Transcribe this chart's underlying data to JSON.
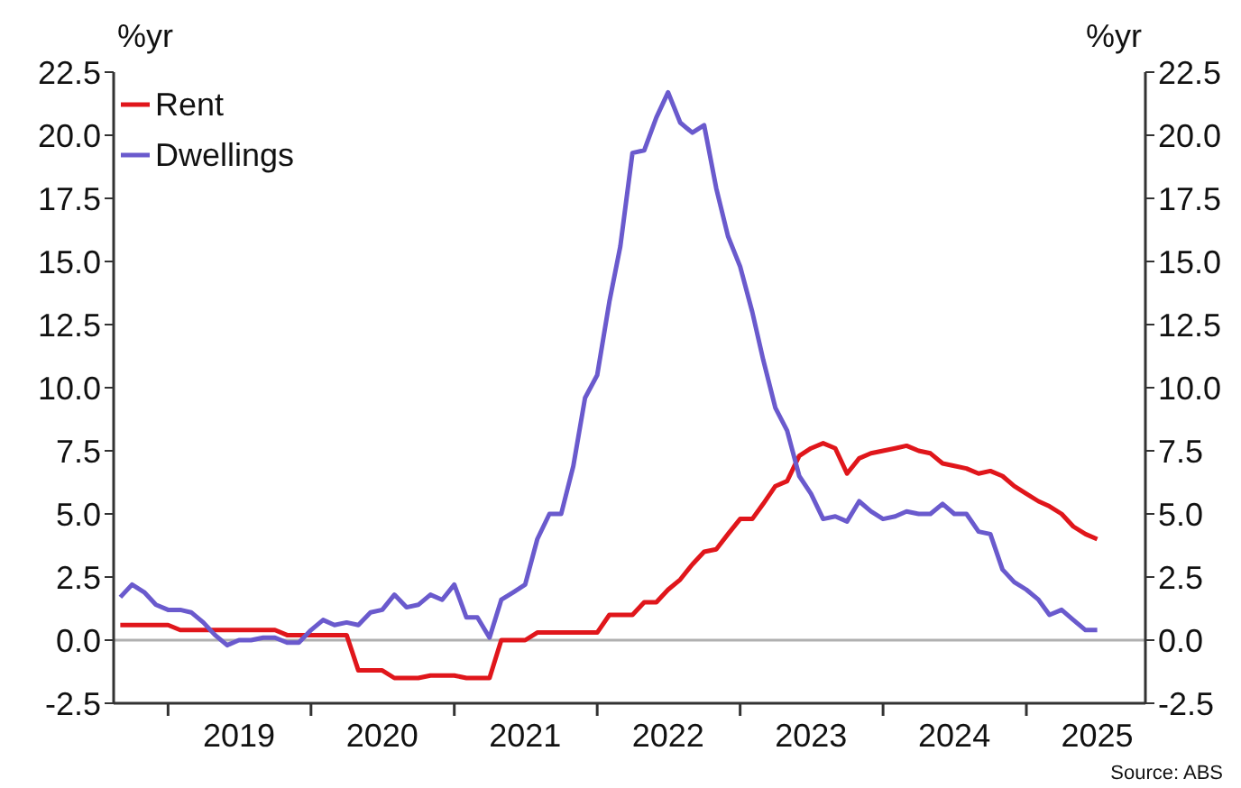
{
  "chart_data": {
    "type": "line",
    "ylabel": "%yr",
    "y2label": "%yr",
    "x": [
      "2018-09",
      "2018-10",
      "2018-11",
      "2018-12",
      "2019-01",
      "2019-02",
      "2019-03",
      "2019-04",
      "2019-05",
      "2019-06",
      "2019-07",
      "2019-08",
      "2019-09",
      "2019-10",
      "2019-11",
      "2019-12",
      "2020-01",
      "2020-02",
      "2020-03",
      "2020-04",
      "2020-05",
      "2020-06",
      "2020-07",
      "2020-08",
      "2020-09",
      "2020-10",
      "2020-11",
      "2020-12",
      "2021-01",
      "2021-02",
      "2021-03",
      "2021-04",
      "2021-05",
      "2021-06",
      "2021-07",
      "2021-08",
      "2021-09",
      "2021-10",
      "2021-11",
      "2021-12",
      "2022-01",
      "2022-02",
      "2022-03",
      "2022-04",
      "2022-05",
      "2022-06",
      "2022-07",
      "2022-08",
      "2022-09",
      "2022-10",
      "2022-11",
      "2022-12",
      "2023-01",
      "2023-02",
      "2023-03",
      "2023-04",
      "2023-05",
      "2023-06",
      "2023-07",
      "2023-08",
      "2023-09",
      "2023-10",
      "2023-11",
      "2023-12",
      "2024-01",
      "2024-02",
      "2024-03",
      "2024-04",
      "2024-05",
      "2024-06",
      "2024-07",
      "2024-08",
      "2024-09",
      "2024-10",
      "2024-11",
      "2024-12",
      "2025-01",
      "2025-02",
      "2025-03",
      "2025-04",
      "2025-05",
      "2025-06",
      "2025-07"
    ],
    "series": [
      {
        "name": "Rent",
        "color": "#e0161b",
        "values": [
          0.6,
          0.6,
          0.6,
          0.6,
          0.6,
          0.4,
          0.4,
          0.4,
          0.4,
          0.4,
          0.4,
          0.4,
          0.4,
          0.4,
          0.2,
          0.2,
          0.2,
          0.2,
          0.2,
          0.2,
          -1.2,
          -1.2,
          -1.2,
          -1.5,
          -1.5,
          -1.5,
          -1.4,
          -1.4,
          -1.4,
          -1.5,
          -1.5,
          -1.5,
          0.0,
          0.0,
          0.0,
          0.3,
          0.3,
          0.3,
          0.3,
          0.3,
          0.3,
          1.0,
          1.0,
          1.0,
          1.5,
          1.5,
          2.0,
          2.4,
          3.0,
          3.5,
          3.6,
          4.2,
          4.8,
          4.8,
          5.4,
          6.1,
          6.3,
          7.3,
          7.6,
          7.8,
          7.6,
          6.6,
          7.2,
          7.4,
          7.5,
          7.6,
          7.7,
          7.5,
          7.4,
          7.0,
          6.9,
          6.8,
          6.6,
          6.7,
          6.5,
          6.1,
          5.8,
          5.5,
          5.3,
          5.0,
          4.5,
          4.2,
          4.0
        ]
      },
      {
        "name": "Dwellings",
        "color": "#6a5acd",
        "values": [
          1.7,
          2.2,
          1.9,
          1.4,
          1.2,
          1.2,
          1.1,
          0.7,
          0.2,
          -0.2,
          0.0,
          0.0,
          0.1,
          0.1,
          -0.1,
          -0.1,
          0.4,
          0.8,
          0.6,
          0.7,
          0.6,
          1.1,
          1.2,
          1.8,
          1.3,
          1.4,
          1.8,
          1.6,
          2.2,
          0.9,
          0.9,
          0.1,
          1.6,
          1.9,
          2.2,
          4.0,
          5.0,
          5.0,
          6.9,
          9.6,
          10.5,
          13.4,
          15.6,
          19.3,
          19.4,
          20.7,
          21.7,
          20.5,
          20.1,
          20.4,
          17.9,
          16.0,
          14.8,
          13.0,
          11.1,
          9.2,
          8.3,
          6.5,
          5.8,
          4.8,
          4.9,
          4.7,
          5.5,
          5.1,
          4.8,
          4.9,
          5.1,
          5.0,
          5.0,
          5.4,
          5.0,
          5.0,
          4.3,
          4.2,
          2.8,
          2.3,
          2.0,
          1.6,
          1.0,
          1.2,
          0.8,
          0.4,
          0.4
        ]
      }
    ],
    "xlim": [
      "2018-08-15",
      "2025-11-01"
    ],
    "xticks": [
      {
        "value": "2019-01-01",
        "label": null
      },
      {
        "value": "2019-07-01",
        "label": "2019"
      },
      {
        "value": "2020-01-01",
        "label": null
      },
      {
        "value": "2020-07-01",
        "label": "2020"
      },
      {
        "value": "2021-01-01",
        "label": null
      },
      {
        "value": "2021-07-01",
        "label": "2021"
      },
      {
        "value": "2022-01-01",
        "label": null
      },
      {
        "value": "2022-07-01",
        "label": "2022"
      },
      {
        "value": "2023-01-01",
        "label": null
      },
      {
        "value": "2023-07-01",
        "label": "2023"
      },
      {
        "value": "2024-01-01",
        "label": null
      },
      {
        "value": "2024-07-01",
        "label": "2024"
      },
      {
        "value": "2025-01-01",
        "label": null
      },
      {
        "value": "2025-07-01",
        "label": "2025"
      }
    ],
    "ylim": [
      -2.5,
      22.5
    ],
    "yticks": [
      {
        "value": -2.5,
        "label": "-2.5"
      },
      {
        "value": 0,
        "label": "0.0"
      },
      {
        "value": 2.5,
        "label": "2.5"
      },
      {
        "value": 5,
        "label": "5.0"
      },
      {
        "value": 7.5,
        "label": "7.5"
      },
      {
        "value": 10,
        "label": "10.0"
      },
      {
        "value": 12.5,
        "label": "12.5"
      },
      {
        "value": 15,
        "label": "15.0"
      },
      {
        "value": 17.5,
        "label": "17.5"
      },
      {
        "value": 20,
        "label": "20.0"
      },
      {
        "value": 22.5,
        "label": "22.5"
      }
    ],
    "y2lim": [
      -2.5,
      22.5
    ],
    "y2ticks": [
      {
        "value": -2.5,
        "label": "-2.5"
      },
      {
        "value": 0,
        "label": "0.0"
      },
      {
        "value": 2.5,
        "label": "2.5"
      },
      {
        "value": 5,
        "label": "5.0"
      },
      {
        "value": 7.5,
        "label": "7.5"
      },
      {
        "value": 10,
        "label": "10.0"
      },
      {
        "value": 12.5,
        "label": "12.5"
      },
      {
        "value": 15,
        "label": "15.0"
      },
      {
        "value": 17.5,
        "label": "17.5"
      },
      {
        "value": 20,
        "label": "20.0"
      },
      {
        "value": 22.5,
        "label": "22.5"
      }
    ],
    "ref_lines": [
      {
        "axis": "y",
        "value": 0,
        "color": "#b0b0b0"
      }
    ],
    "legend": "top left",
    "grid": false,
    "marker": "none",
    "line_style": "solid",
    "annotations": [
      "Source: ABS"
    ]
  }
}
